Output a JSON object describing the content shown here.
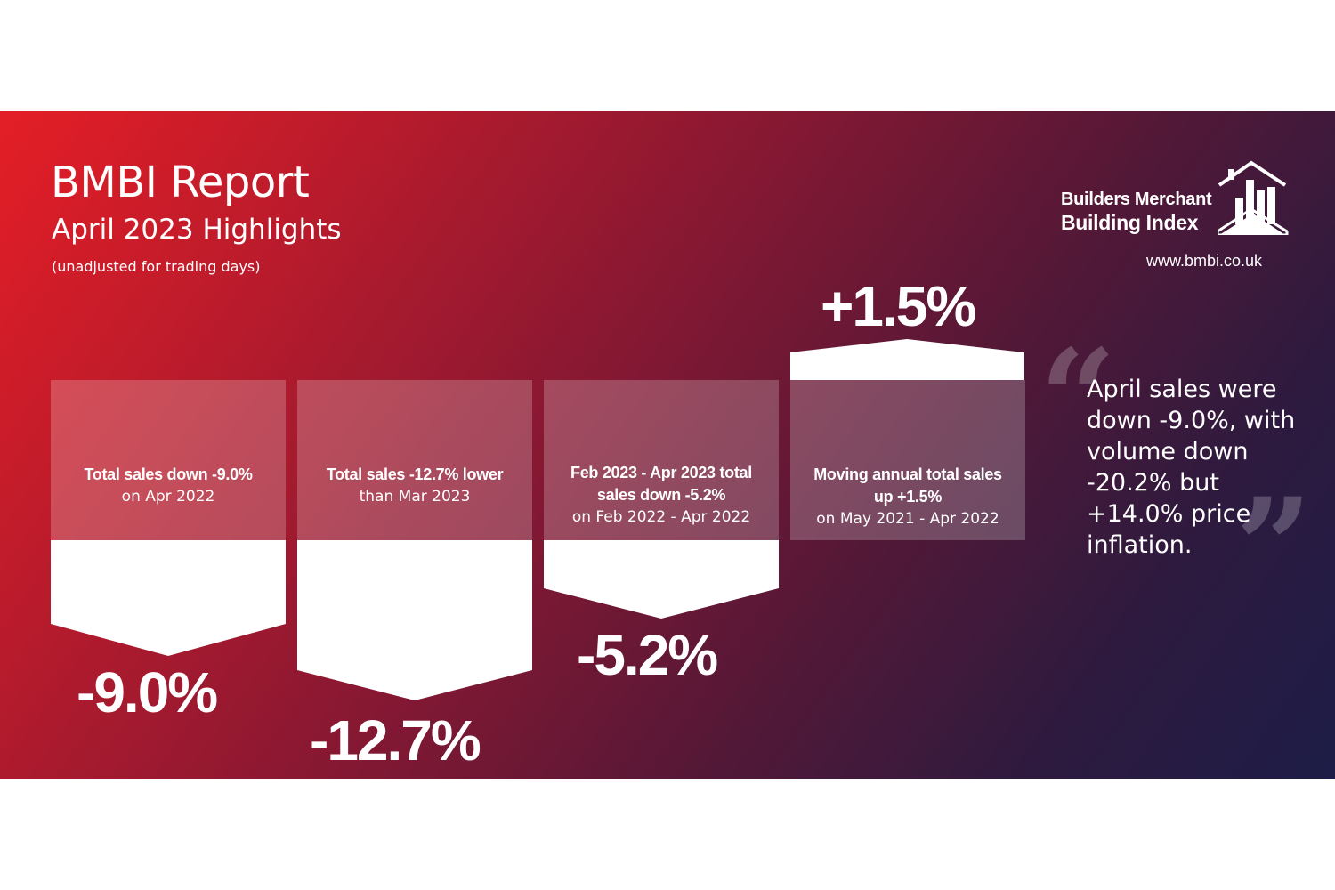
{
  "header": {
    "title": "BMBI Report",
    "subtitle": "April 2023 Highlights",
    "note": "(unadjusted for trading days)"
  },
  "logo": {
    "line1": "Builders Merchant",
    "line2": "Building Index",
    "icon": "house-chart-icon",
    "website": "www.bmbi.co.uk"
  },
  "cards": [
    {
      "bold": "Total sales down -9.0%",
      "bold2": "",
      "regular": "on Apr 2022",
      "big_value": "-9.0%",
      "change_percent": -9.0
    },
    {
      "bold": "Total sales -12.7% lower",
      "bold2": "",
      "regular": "than Mar 2023",
      "big_value": "-12.7%",
      "change_percent": -12.7
    },
    {
      "bold": "Feb 2023 - Apr 2023 total",
      "bold2": "sales down -5.2%",
      "regular": "on Feb 2022 - Apr 2022",
      "big_value": "-5.2%",
      "change_percent": -5.2
    },
    {
      "bold": "Moving annual total sales",
      "bold2": "up +1.5%",
      "regular": "on May 2021 - Apr 2022",
      "big_value": "+1.5%",
      "change_percent": 1.5
    }
  ],
  "quote": {
    "text": "April sales were down -9.0%, with volume down -20.2% but +14.0% price inflation.",
    "open_mark": "“",
    "close_mark": "”"
  },
  "colors": {
    "gradient_start": "#e41e26",
    "gradient_mid": "#8a1832",
    "gradient_end": "#1d1d47",
    "text": "#ffffff"
  }
}
